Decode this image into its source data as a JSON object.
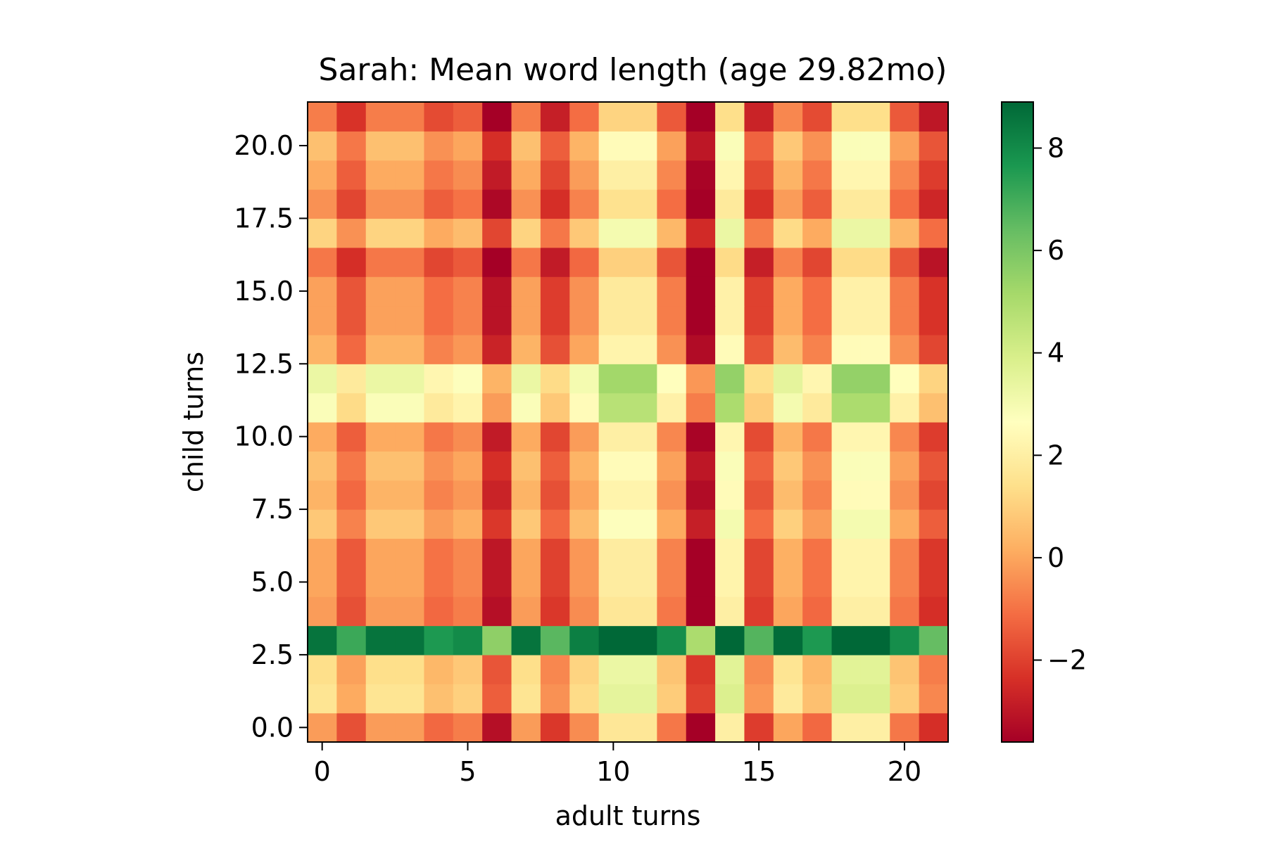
{
  "chart_data": {
    "type": "heatmap",
    "title": "Sarah: Mean word length (age 29.82mo)",
    "xlabel": "adult turns",
    "ylabel": "child turns",
    "x_ticks": [
      "0",
      "5",
      "10",
      "15",
      "20"
    ],
    "x_tick_values": [
      0,
      5,
      10,
      15,
      20
    ],
    "y_ticks": [
      "0.0",
      "2.5",
      "5.0",
      "7.5",
      "10.0",
      "12.5",
      "15.0",
      "17.5",
      "20.0"
    ],
    "y_tick_values": [
      0,
      2.5,
      5,
      7.5,
      10,
      12.5,
      15,
      17.5,
      20
    ],
    "xlim": [
      -0.5,
      21.5
    ],
    "ylim": [
      -0.5,
      21.5
    ],
    "colormap": "RdYlGn",
    "colorbar": {
      "range": [
        -3.6,
        8.9
      ],
      "ticks": [
        "−2",
        "0",
        "2",
        "4",
        "6",
        "8"
      ],
      "tick_values": [
        -2,
        0,
        2,
        4,
        6,
        8
      ]
    },
    "column_values": [
      0.0,
      -1.5,
      0.0,
      0.0,
      -1.0,
      -0.6,
      -3.0,
      0.0,
      -2.0,
      -0.3,
      1.9,
      1.9,
      -0.7,
      -3.6,
      2.2,
      -1.9,
      0.2,
      -1.0,
      2.2,
      2.2,
      -0.7,
      -2.2
    ],
    "row_values": [
      -0.2,
      1.6,
      1.4,
      8.6,
      -0.2,
      0.0,
      0.0,
      0.8,
      0.3,
      0.6,
      0.1,
      2.8,
      3.3,
      0.3,
      -0.1,
      -0.1,
      -0.9,
      1.1,
      -0.4,
      0.1,
      0.6,
      -0.8
    ],
    "values_note_colorbar_label": ""
  }
}
